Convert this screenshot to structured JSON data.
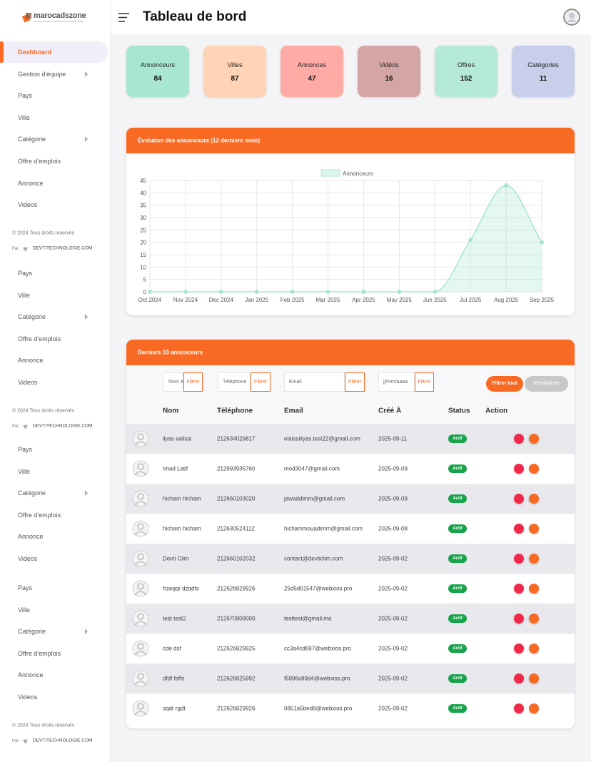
{
  "sidebar": {
    "logo": "marocadszone",
    "groups": [
      {
        "items": [
          {
            "label": "Dashboard",
            "active": true
          },
          {
            "label": "Gestion d'équipe",
            "arrow": true
          },
          {
            "label": "Pays"
          },
          {
            "label": "Ville"
          },
          {
            "label": "Catégorie",
            "arrow": true
          },
          {
            "label": "Offre d'emplois"
          },
          {
            "label": "Annonce"
          },
          {
            "label": "Videos"
          }
        ],
        "copyright": "© 2024 Tous droits réservés",
        "by": "Par",
        "site": "DEVTITECHNOLOGIE.COM"
      },
      {
        "items": [
          {
            "label": "Pays"
          },
          {
            "label": "Ville"
          },
          {
            "label": "Catégorie",
            "arrow": true
          },
          {
            "label": "Offre d'emplois"
          },
          {
            "label": "Annonce"
          },
          {
            "label": "Videos"
          }
        ],
        "copyright": "© 2024 Tous droits réservés",
        "by": "Par",
        "site": "DEVTITECHNOLOGIE.COM"
      },
      {
        "items": [
          {
            "label": "Pays"
          },
          {
            "label": "Ville"
          },
          {
            "label": "Catégorie",
            "arrow": true
          },
          {
            "label": "Offre d'emplois"
          },
          {
            "label": "Annonce"
          },
          {
            "label": "Videos"
          }
        ]
      },
      {
        "items": [
          {
            "label": "Pays"
          },
          {
            "label": "Ville"
          },
          {
            "label": "Catégorie",
            "arrow": true
          },
          {
            "label": "Offre d'emplois"
          },
          {
            "label": "Annonce"
          },
          {
            "label": "Videos"
          }
        ],
        "copyright": "© 2024 Tous droits réservés",
        "by": "Par",
        "site": "DEVTITECHNOLOGIE.COM"
      }
    ]
  },
  "header": {
    "title": "Tableau de bord"
  },
  "stats": [
    {
      "label": "Annonceurs",
      "value": 84,
      "color": "#a8e6cf"
    },
    {
      "label": "Villes",
      "value": 87,
      "color": "#ffd3b6"
    },
    {
      "label": "Annonces",
      "value": 47,
      "color": "#ffaaa5"
    },
    {
      "label": "Vidéos",
      "value": 16,
      "color": "#d4a5a5"
    },
    {
      "label": "Offres",
      "value": 152,
      "color": "#b5ead7"
    },
    {
      "label": "Catégories",
      "value": 11,
      "color": "#c7cfea"
    }
  ],
  "chart_data": {
    "type": "line",
    "title": "Évolution des annonceurs (12 derniers mois)",
    "categories": [
      "Oct 2024",
      "Nov 2024",
      "Dec 2024",
      "Jan 2025",
      "Feb 2025",
      "Mar 2025",
      "Apr 2025",
      "May 2025",
      "Jun 2025",
      "Jul 2025",
      "Aug 2025",
      "Sep 2025"
    ],
    "series": [
      {
        "name": "Annonceurs",
        "color": "#a8e6cf",
        "values": [
          0,
          0,
          0,
          0,
          0,
          0,
          0,
          0,
          0,
          21,
          43,
          20
        ]
      }
    ],
    "ylim": [
      0,
      45
    ],
    "yticks": [
      0,
      5,
      10,
      15,
      20,
      25,
      30,
      35,
      40,
      45
    ],
    "grid": true,
    "smooth": true,
    "fill": true
  },
  "table": {
    "title": "Derniers 10 annonceurs",
    "filters": [
      {
        "placeholder": "Nom à",
        "button": "Filtrer"
      },
      {
        "placeholder": "Téléphone",
        "button": "Filtrer"
      },
      {
        "placeholder": "Email",
        "button": "Filtrer"
      },
      {
        "placeholder": "jj/mm/aaaa",
        "button": "Filtrer"
      }
    ],
    "buttons": [
      "Filtrer tout",
      "Réinitialiser"
    ],
    "columns": [
      "Nom",
      "Téléphone",
      "Email",
      "Créé À",
      "Status",
      "Action"
    ],
    "rows": [
      [
        "ilyas ealissi",
        "212634029817",
        "elaissiilyas.test22@gmail.com",
        "2025-09-11",
        "Actif"
      ],
      [
        "Imad Latif",
        "212693935760",
        "mod3047@gmail.com",
        "2025-09-09",
        "Actif"
      ],
      [
        "hicham hicham",
        "212660103020",
        "jawaddimm@gmail.com",
        "2025-09-09",
        "Actif"
      ],
      [
        "hicham hicham",
        "212630524112",
        "hichammouadimm@gmail.com",
        "2025-09-08",
        "Actif"
      ],
      [
        "Devti Clim",
        "212660102032",
        "contact@devticlim.com",
        "2025-09-02",
        "Actif"
      ],
      [
        "frzeqqr dzqdfs",
        "212626829926",
        "25d5d01547@webxios.pro",
        "2025-09-02",
        "Actif"
      ],
      [
        "test test2",
        "212670809000",
        "testtest@gmail.ma",
        "2025-09-02",
        "Actif"
      ],
      [
        "cde dsf",
        "212626829925",
        "cc3a4cd697@webxios.pro",
        "2025-09-02",
        "Actif"
      ],
      [
        "dfdf fsffs",
        "212626825992",
        "f5996c89d4@webxios.pro",
        "2025-09-02",
        "Actif"
      ],
      [
        "sqdr rgdt",
        "212626829926",
        "0851a5bed8@webxios.pro",
        "2025-09-02",
        "Actif"
      ]
    ]
  }
}
